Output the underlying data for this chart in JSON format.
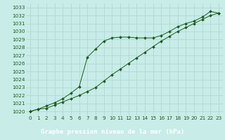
{
  "title": "Graphe pression niveau de la mer (hPa)",
  "bg_color": "#c8ece8",
  "grid_color": "#aed4ce",
  "line_color": "#1a5c1a",
  "marker_color": "#1a5c1a",
  "ylim": [
    1019.5,
    1033.5
  ],
  "xlim": [
    -0.5,
    23.5
  ],
  "yticks": [
    1020,
    1021,
    1022,
    1023,
    1024,
    1025,
    1026,
    1027,
    1028,
    1029,
    1030,
    1031,
    1032,
    1033
  ],
  "xticks": [
    0,
    1,
    2,
    3,
    4,
    5,
    6,
    7,
    8,
    9,
    10,
    11,
    12,
    13,
    14,
    15,
    16,
    17,
    18,
    19,
    20,
    21,
    22,
    23
  ],
  "series1": [
    1020.0,
    1020.3,
    1020.4,
    1020.8,
    1021.2,
    1021.6,
    1022.0,
    1022.5,
    1023.0,
    1023.8,
    1024.6,
    1025.3,
    1026.0,
    1026.7,
    1027.4,
    1028.1,
    1028.8,
    1029.4,
    1030.0,
    1030.5,
    1031.0,
    1031.5,
    1032.0,
    1032.3
  ],
  "series2": [
    1020.0,
    1020.3,
    1020.7,
    1021.1,
    1021.6,
    1022.3,
    1023.1,
    1026.8,
    1027.8,
    1028.8,
    1029.2,
    1029.3,
    1029.3,
    1029.2,
    1029.2,
    1029.2,
    1029.5,
    1030.0,
    1030.6,
    1031.0,
    1031.3,
    1031.8,
    1032.5,
    1032.3
  ],
  "tick_fontsize": 5.2,
  "title_fontsize": 6.5,
  "title_bg": "#1a5c1a",
  "title_fg": "#ffffff",
  "linewidth": 0.7,
  "markersize": 2.0
}
